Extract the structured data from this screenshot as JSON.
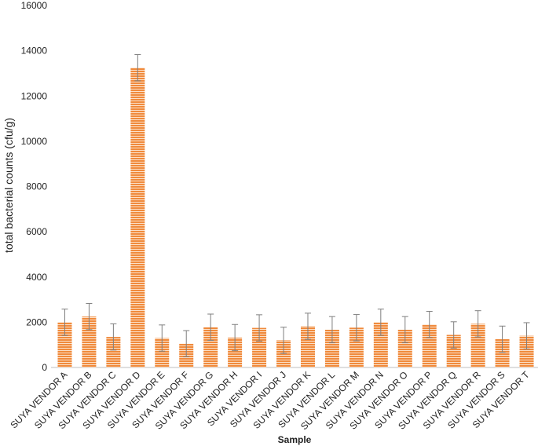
{
  "chart_data": {
    "type": "bar",
    "title": "",
    "xlabel": "Sample",
    "ylabel": "total bacterial counts (cfu/g)",
    "ylim": [
      0,
      16000
    ],
    "yticks": [
      0,
      2000,
      4000,
      6000,
      8000,
      10000,
      12000,
      14000,
      16000
    ],
    "grid": false,
    "legend": "none",
    "bar_color": "#f08a3c",
    "bar_stripe_color": "#fbe0c8",
    "error_bar_color": "#7f7f7f",
    "categories": [
      "SUYA VENDOR A",
      "SUYA VENDOR B",
      "SUYA VENDOR C",
      "SUYA VENDOR D",
      "SUYA VENDOR E",
      "SUYA VENDOR F",
      "SUYA VENDOR G",
      "SUYA VENDOR H",
      "SUYA VENDOR I",
      "SUYA VENDOR J",
      "SUYA VENDOR K",
      "SUYA VENDOR L",
      "SUYA VENDOR M",
      "SUYA VENDOR N",
      "SUYA VENDOR O",
      "SUYA VENDOR P",
      "SUYA VENDOR Q",
      "SUYA VENDOR R",
      "SUYA VENDOR S",
      "SUYA VENDOR T"
    ],
    "values": [
      2000,
      2250,
      1350,
      13250,
      1300,
      1050,
      1780,
      1320,
      1750,
      1200,
      1820,
      1670,
      1760,
      2000,
      1670,
      1900,
      1440,
      1930,
      1250,
      1400
    ],
    "errors": [
      580,
      580,
      580,
      580,
      580,
      580,
      580,
      580,
      580,
      580,
      580,
      580,
      580,
      580,
      580,
      580,
      580,
      580,
      580,
      580
    ]
  }
}
